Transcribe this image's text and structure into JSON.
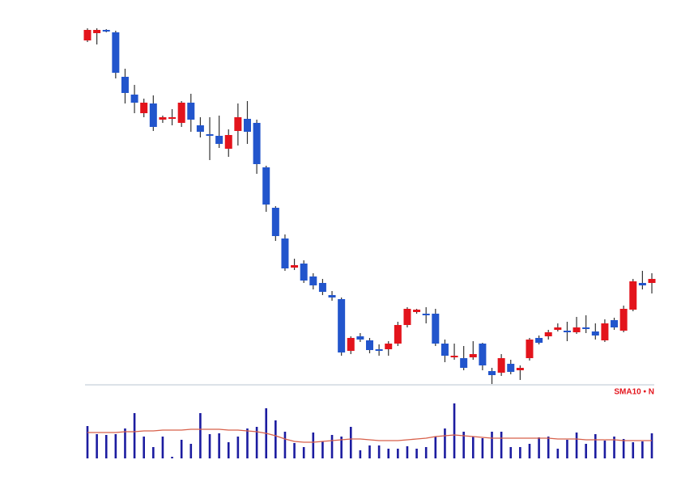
{
  "chart_data": {
    "type": "candlestick",
    "open": [
      425,
      434,
      438,
      435,
      380,
      358,
      335,
      347,
      327,
      330,
      323,
      348,
      320,
      309,
      307,
      291,
      313,
      328,
      323,
      268,
      218,
      180,
      144,
      149,
      133,
      125,
      110,
      105,
      41,
      59,
      54,
      43,
      43,
      50,
      73,
      89,
      87,
      87,
      50,
      33,
      32,
      33,
      50,
      16,
      14,
      25,
      17,
      32,
      57,
      59,
      67,
      66,
      64,
      70,
      65,
      54,
      79,
      66,
      92,
      125,
      125
    ],
    "high": [
      440,
      440,
      439,
      437,
      390,
      370,
      353,
      357,
      332,
      340,
      350,
      359,
      330,
      330,
      332,
      315,
      347,
      350,
      327,
      270,
      220,
      185,
      155,
      153,
      137,
      130,
      115,
      107,
      59,
      63,
      57,
      49,
      53,
      77,
      95,
      93,
      95,
      93,
      55,
      50,
      47,
      53,
      51,
      20,
      37,
      30,
      23,
      57,
      60,
      67,
      75,
      77,
      83,
      85,
      75,
      80,
      82,
      97,
      130,
      140,
      137
    ],
    "low": [
      423,
      420,
      435,
      378,
      347,
      335,
      330,
      313,
      323,
      320,
      318,
      312,
      305,
      277,
      292,
      281,
      295,
      297,
      260,
      213,
      177,
      140,
      141,
      125,
      117,
      110,
      103,
      35,
      37,
      52,
      38,
      35,
      35,
      47,
      70,
      87,
      75,
      47,
      27,
      30,
      17,
      30,
      17,
      0,
      10,
      12,
      5,
      29,
      49,
      55,
      65,
      53,
      62,
      63,
      55,
      52,
      67,
      64,
      90,
      117,
      112
    ],
    "close": [
      438,
      438,
      436,
      385,
      360,
      348,
      348,
      318,
      330,
      330,
      348,
      327,
      312,
      307,
      297,
      308,
      330,
      312,
      272,
      222,
      183,
      143,
      147,
      128,
      122,
      114,
      107,
      39,
      57,
      55,
      42,
      42,
      50,
      73,
      93,
      92,
      85,
      50,
      35,
      35,
      20,
      37,
      23,
      11,
      32,
      15,
      20,
      55,
      51,
      64,
      70,
      65,
      70,
      68,
      60,
      75,
      70,
      93,
      127,
      122,
      130
    ],
    "volume": [
      40,
      30,
      29,
      30,
      37,
      56,
      27,
      14,
      27,
      2,
      23,
      18,
      56,
      30,
      31,
      20,
      27,
      37,
      39,
      62,
      47,
      33,
      19,
      14,
      32,
      21,
      29,
      27,
      39,
      10,
      16,
      16,
      12,
      12,
      15,
      12,
      14,
      27,
      37,
      68,
      33,
      27,
      25,
      33,
      33,
      14,
      14,
      18,
      26,
      27,
      12,
      23,
      32,
      18,
      30,
      22,
      27,
      24,
      20,
      21,
      31
    ],
    "volume_ma": [
      32,
      32,
      32,
      32,
      33,
      33,
      34,
      34,
      35,
      35,
      35,
      36,
      36,
      36,
      36,
      35,
      35,
      34,
      33,
      31,
      28,
      24,
      21,
      20,
      20,
      21,
      22,
      23,
      24,
      24,
      23,
      22,
      22,
      22,
      23,
      24,
      25,
      27,
      28,
      29,
      28,
      27,
      26,
      25,
      25,
      25,
      25,
      25,
      25,
      25,
      24,
      24,
      24,
      23,
      23,
      23,
      23,
      22,
      22,
      22,
      22
    ],
    "volume_label": "SMA10 • N",
    "up_color": "#e3141c",
    "down_color": "#2255cc",
    "volume_color": "#1c1ca0",
    "ma_color": "#d8604a",
    "ylim": [
      0,
      445
    ],
    "volume_ylim": [
      0,
      89
    ]
  }
}
